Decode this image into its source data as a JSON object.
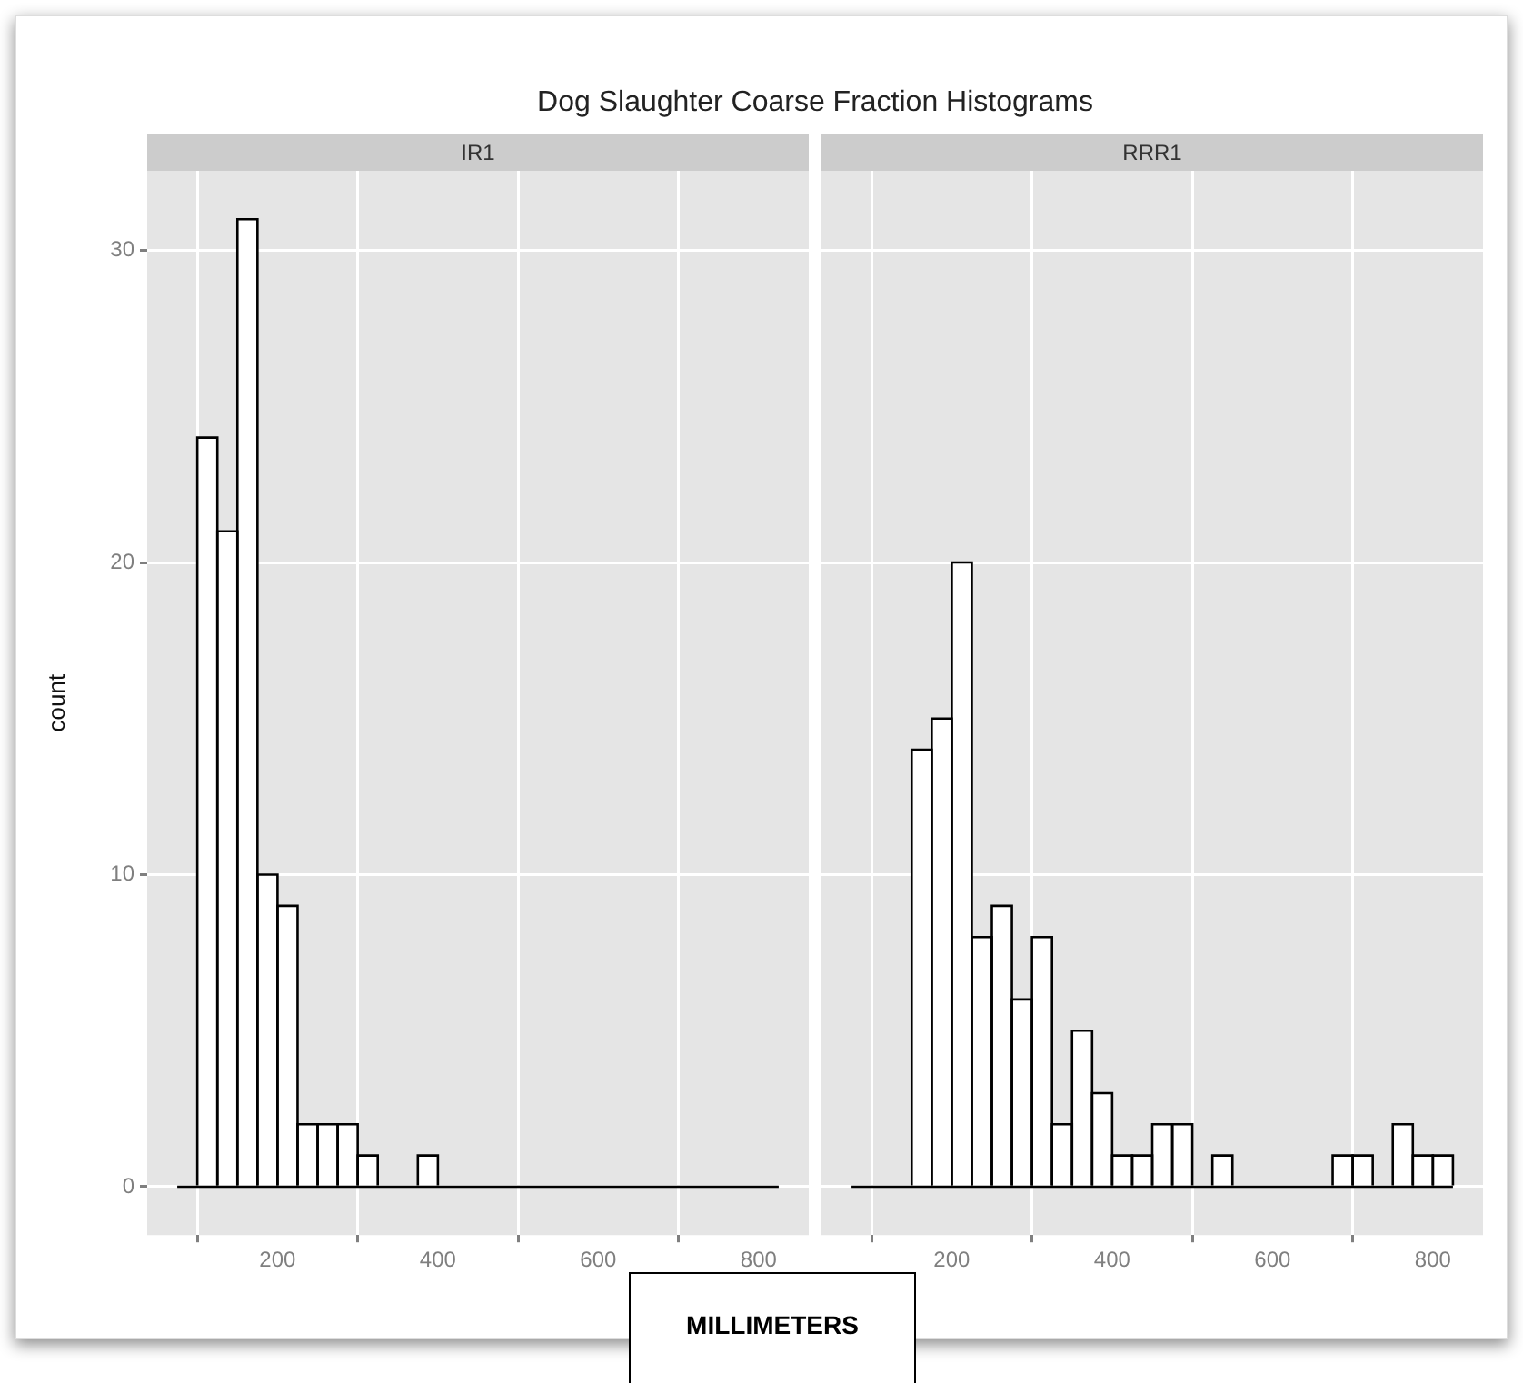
{
  "chart_data": [
    {
      "type": "histogram",
      "title": "Dog Slaughter Coarse Fraction Histograms",
      "subtitle": "IR1",
      "xlabel": "MILLIMETERS",
      "ylabel": "count",
      "bins": [
        75,
        100,
        125,
        150,
        175,
        200,
        225,
        250,
        275,
        300,
        325,
        350,
        375,
        400,
        425,
        450,
        475,
        500,
        525,
        550,
        575,
        600,
        625,
        650,
        675,
        700,
        725,
        750,
        775,
        800,
        825
      ],
      "values": [
        0,
        24,
        21,
        31,
        10,
        9,
        2,
        2,
        2,
        1,
        0,
        0,
        1,
        0,
        0,
        0,
        0,
        0,
        0,
        0,
        0,
        0,
        0,
        0,
        0,
        0,
        0,
        0,
        0,
        0
      ],
      "color": "#ffffff",
      "xlim": [
        37.5,
        862.5
      ],
      "xticks": [
        200,
        400,
        600,
        800
      ],
      "ylim": [
        -1.55,
        32.55
      ],
      "yticks": [
        0,
        10,
        20,
        30
      ],
      "grid": true
    },
    {
      "type": "histogram",
      "subtitle": "RRR1",
      "bins": [
        75,
        100,
        125,
        150,
        175,
        200,
        225,
        250,
        275,
        300,
        325,
        350,
        375,
        400,
        425,
        450,
        475,
        500,
        525,
        550,
        575,
        600,
        625,
        650,
        675,
        700,
        725,
        750,
        775,
        800,
        825
      ],
      "values": [
        0,
        0,
        0,
        14,
        15,
        20,
        8,
        9,
        6,
        8,
        2,
        5,
        3,
        1,
        1,
        2,
        2,
        0,
        1,
        0,
        0,
        0,
        0,
        0,
        1,
        1,
        0,
        2,
        1,
        1
      ],
      "color": "#ffffff",
      "xlim": [
        37.5,
        862.5
      ],
      "xticks": [
        200,
        400,
        600,
        800
      ],
      "ylim": [
        -1.55,
        32.55
      ],
      "yticks": [
        0,
        10,
        20,
        30
      ],
      "grid": true,
      "tick_labels": "x"
    }
  ]
}
